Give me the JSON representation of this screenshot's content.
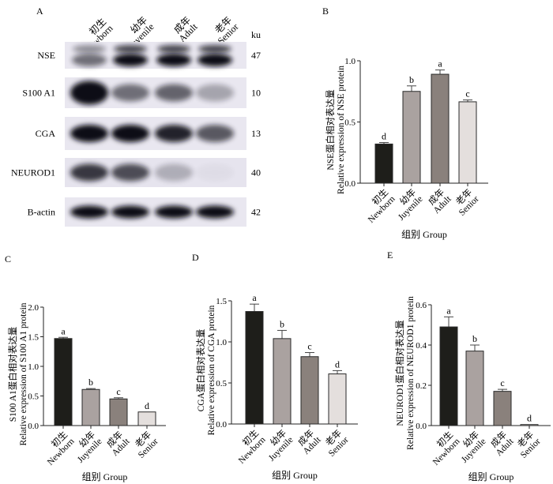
{
  "blot": {
    "panel_label": "A",
    "lanes": [
      {
        "cn": "初生",
        "en": "Newborn"
      },
      {
        "cn": "幼年",
        "en": "Juyenile"
      },
      {
        "cn": "成年",
        "en": "Adult"
      },
      {
        "cn": "老年",
        "en": "Senior"
      }
    ],
    "unit_label": "ku",
    "rows": [
      {
        "protein": "NSE",
        "size": "47",
        "band_intensity": [
          0.55,
          1.0,
          1.0,
          1.0
        ]
      },
      {
        "protein": "S100 A1",
        "size": "10",
        "band_intensity": [
          1.0,
          0.55,
          0.6,
          0.3
        ]
      },
      {
        "protein": "CGA",
        "size": "13",
        "band_intensity": [
          1.0,
          1.0,
          0.9,
          0.65
        ]
      },
      {
        "protein": "NEUROD1",
        "size": "40",
        "band_intensity": [
          0.8,
          0.7,
          0.25,
          0.03
        ]
      },
      {
        "protein": "B-actin",
        "size": "42",
        "band_intensity": [
          1.0,
          1.0,
          1.0,
          1.0
        ]
      }
    ]
  },
  "colors": {
    "newborn": "#1e1e1a",
    "juvenile": "#aaa2a0",
    "adult": "#8a817c",
    "senior": "#e4dfdd",
    "outline": "#2a2a2a"
  },
  "chart_data": [
    {
      "panel_label": "B",
      "type": "bar",
      "categories_cn": [
        "初生",
        "幼年",
        "成年",
        "老年"
      ],
      "categories": [
        "Newborn",
        "Juyenile",
        "Adult",
        "Senior"
      ],
      "values": [
        0.32,
        0.75,
        0.89,
        0.665
      ],
      "errors": [
        0.012,
        0.045,
        0.035,
        0.015
      ],
      "significance": [
        "d",
        "b",
        "a",
        "c"
      ],
      "ylabel_cn": "NSE蛋白相对表达量",
      "ylabel": "Relative expression of NSE protein",
      "xlabel": "组别 Group",
      "ylim": [
        0,
        1.0
      ],
      "yticks": [
        "0.0",
        "0.5",
        "1.0"
      ],
      "ytick_values": [
        0,
        0.5,
        1.0
      ]
    },
    {
      "panel_label": "C",
      "type": "bar",
      "categories_cn": [
        "初生",
        "幼年",
        "成年",
        "老年"
      ],
      "categories": [
        "Newborn",
        "Juyenile",
        "Adult",
        "Senior"
      ],
      "values": [
        1.47,
        0.61,
        0.45,
        0.23
      ],
      "errors": [
        0.02,
        0.015,
        0.02,
        0.0
      ],
      "significance": [
        "a",
        "b",
        "c",
        "d"
      ],
      "ylabel_cn": "S100 A1蛋白相对表达量",
      "ylabel": "Relative expression of S100 A1 protein",
      "xlabel": "组别 Group",
      "ylim": [
        0,
        2.0
      ],
      "yticks": [
        "0.0",
        "0.5",
        "1.0",
        "1.5",
        "2.0"
      ],
      "ytick_values": [
        0,
        0.5,
        1.0,
        1.5,
        2.0
      ]
    },
    {
      "panel_label": "D",
      "type": "bar",
      "categories_cn": [
        "初生",
        "幼年",
        "成年",
        "老年"
      ],
      "categories": [
        "Newborn",
        "Juyenile",
        "Adult",
        "Senior"
      ],
      "values": [
        1.37,
        1.04,
        0.82,
        0.61
      ],
      "errors": [
        0.09,
        0.1,
        0.05,
        0.04
      ],
      "significance": [
        "a",
        "b",
        "c",
        "d"
      ],
      "ylabel_cn": "CGA蛋白相对表达量",
      "ylabel": "Relative expression of CGA protein",
      "xlabel": "组别 Group",
      "ylim": [
        0,
        1.5
      ],
      "yticks": [
        "0.0",
        "0.5",
        "1.0",
        "1.5"
      ],
      "ytick_values": [
        0,
        0.5,
        1.0,
        1.5
      ]
    },
    {
      "panel_label": "E",
      "type": "bar",
      "categories_cn": [
        "初生",
        "幼年",
        "成年",
        "老年"
      ],
      "categories": [
        "Newborn",
        "Juyenile",
        "Adult",
        "Senior"
      ],
      "values": [
        0.49,
        0.37,
        0.17,
        0.005
      ],
      "errors": [
        0.05,
        0.03,
        0.01,
        0.0
      ],
      "significance": [
        "a",
        "b",
        "c",
        "d"
      ],
      "ylabel_cn": "NEUROD1蛋白相对表达量",
      "ylabel": "Relative expression of NEUROD1 protein",
      "xlabel": "组别 Group",
      "ylim": [
        0,
        0.6
      ],
      "yticks": [
        "0.0",
        "0.2",
        "0.4",
        "0.6"
      ],
      "ytick_values": [
        0,
        0.2,
        0.4,
        0.6
      ]
    }
  ]
}
